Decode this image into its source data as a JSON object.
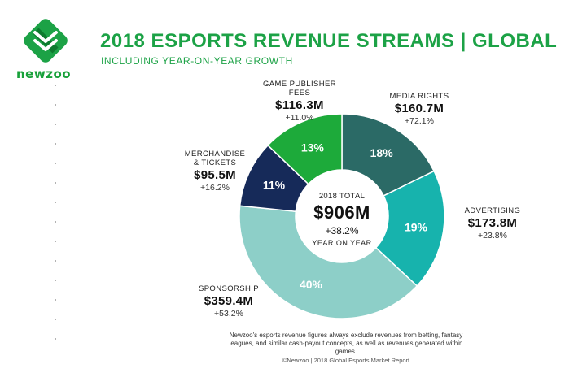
{
  "brand": {
    "name": "newzoo",
    "color_green": "#1ca246",
    "color_dark_green": "#0d7a2e"
  },
  "header": {
    "title": "2018 ESPORTS REVENUE STREAMS | GLOBAL",
    "subtitle": "INCLUDING YEAR-ON-YEAR GROWTH"
  },
  "chart_data": {
    "type": "pie",
    "variant": "donut",
    "title": "2018 ESPORTS REVENUE STREAMS | GLOBAL",
    "subtitle": "INCLUDING YEAR-ON-YEAR GROWTH",
    "unit": "$M",
    "slices": [
      {
        "key": "media_rights",
        "label": "MEDIA RIGHTS",
        "value": 160.7,
        "value_label": "$160.7M",
        "share_label": "18%",
        "growth_label": "+72.1%",
        "color": "#2b6a66"
      },
      {
        "key": "advertising",
        "label": "ADVERTISING",
        "value": 173.8,
        "value_label": "$173.8M",
        "share_label": "19%",
        "growth_label": "+23.8%",
        "color": "#17b3ad"
      },
      {
        "key": "sponsorship",
        "label": "SPONSORSHIP",
        "value": 359.4,
        "value_label": "$359.4M",
        "share_label": "40%",
        "growth_label": "+53.2%",
        "color": "#8dcfc8"
      },
      {
        "key": "merchandise",
        "label": "MERCHANDISE\n& TICKETS",
        "value": 95.5,
        "value_label": "$95.5M",
        "share_label": "11%",
        "growth_label": "+16.2%",
        "color": "#162a59"
      },
      {
        "key": "publisher",
        "label": "GAME PUBLISHER\nFEES",
        "value": 116.3,
        "value_label": "$116.3M",
        "share_label": "13%",
        "growth_label": "+11.0%",
        "color": "#1daa3a"
      }
    ],
    "total": {
      "caption": "2018 TOTAL",
      "value": 906,
      "value_label": "$906M",
      "growth_label": "+38.2%",
      "sub_caption": "YEAR ON YEAR"
    }
  },
  "footer": {
    "note": "Newzoo's esports revenue figures always exclude revenues from betting, fantasy leagues, and similar cash-payout concepts, as well as revenues generated within games.",
    "source": "©Newzoo | 2018 Global Esports Market Report"
  }
}
